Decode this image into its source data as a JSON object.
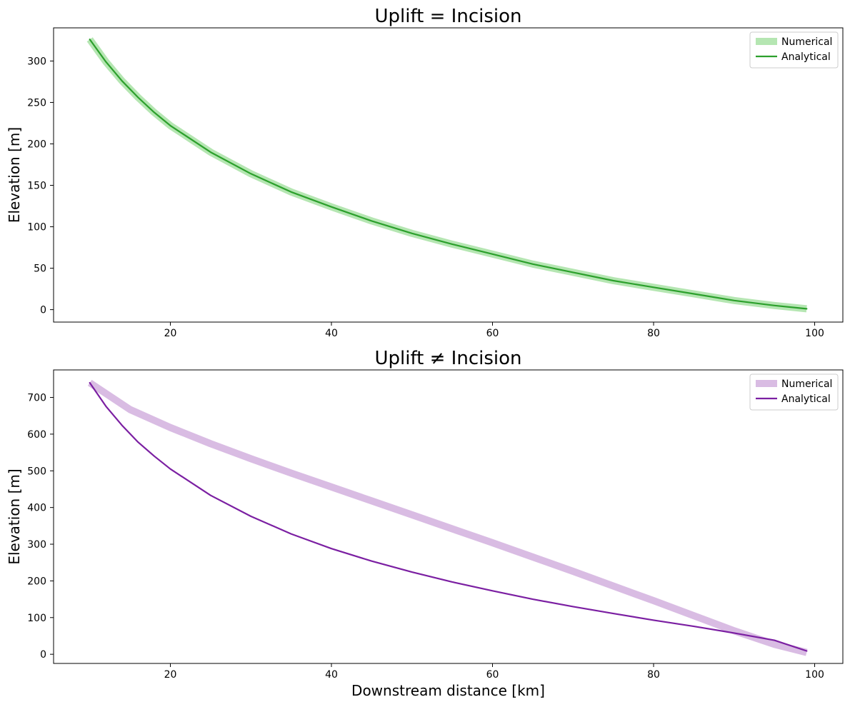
{
  "chart_data": [
    {
      "type": "line",
      "title": "Uplift = Incision",
      "xlabel": "",
      "ylabel": "Elevation [m]",
      "xlim": [
        5.5,
        103.5
      ],
      "ylim": [
        -15,
        340
      ],
      "xticks": [
        20,
        40,
        60,
        80,
        100
      ],
      "yticks": [
        0,
        50,
        100,
        150,
        200,
        250,
        300
      ],
      "grid": false,
      "legend_position": "top-right",
      "series": [
        {
          "name": "Numerical",
          "color": "#b5e6b2",
          "style": "thick",
          "x": [
            10,
            12,
            14,
            16,
            18,
            20,
            25,
            30,
            35,
            40,
            45,
            50,
            55,
            60,
            65,
            70,
            75,
            80,
            85,
            90,
            95,
            99
          ],
          "y": [
            326,
            299,
            276,
            256,
            238,
            222,
            190,
            164,
            142,
            124,
            107,
            92,
            79,
            67,
            55,
            45,
            35,
            27,
            19,
            11,
            5,
            1
          ]
        },
        {
          "name": "Analytical",
          "color": "#2ca02c",
          "style": "thin",
          "x": [
            10,
            12,
            14,
            16,
            18,
            20,
            25,
            30,
            35,
            40,
            45,
            50,
            55,
            60,
            65,
            70,
            75,
            80,
            85,
            90,
            95,
            99
          ],
          "y": [
            326,
            299,
            276,
            256,
            238,
            222,
            190,
            164,
            142,
            124,
            107,
            92,
            79,
            67,
            55,
            45,
            35,
            27,
            19,
            11,
            5,
            1
          ]
        }
      ]
    },
    {
      "type": "line",
      "title": "Uplift ≠ Incision",
      "xlabel": "Downstream distance [km]",
      "ylabel": "Elevation [m]",
      "xlim": [
        5.5,
        103.5
      ],
      "ylim": [
        -25,
        775
      ],
      "xticks": [
        20,
        40,
        60,
        80,
        100
      ],
      "yticks": [
        0,
        100,
        200,
        300,
        400,
        500,
        600,
        700
      ],
      "grid": false,
      "legend_position": "top-right",
      "series": [
        {
          "name": "Numerical",
          "color": "#d9bce3",
          "style": "thick",
          "x": [
            10,
            15,
            20,
            25,
            30,
            35,
            40,
            45,
            50,
            55,
            60,
            65,
            70,
            75,
            80,
            85,
            90,
            95,
            99
          ],
          "y": [
            740,
            667,
            618,
            574,
            533,
            494,
            456,
            418,
            380,
            342,
            304,
            265,
            226,
            186,
            146,
            105,
            64,
            27,
            5
          ]
        },
        {
          "name": "Analytical",
          "color": "#7b1fa2",
          "style": "thin",
          "x": [
            10,
            12,
            14,
            16,
            18,
            20,
            25,
            30,
            35,
            40,
            45,
            50,
            55,
            60,
            65,
            70,
            75,
            80,
            85,
            90,
            95,
            99
          ],
          "y": [
            740,
            676,
            624,
            578,
            540,
            505,
            433,
            376,
            328,
            288,
            254,
            224,
            197,
            173,
            150,
            130,
            111,
            93,
            76,
            58,
            38,
            9
          ]
        }
      ]
    }
  ]
}
